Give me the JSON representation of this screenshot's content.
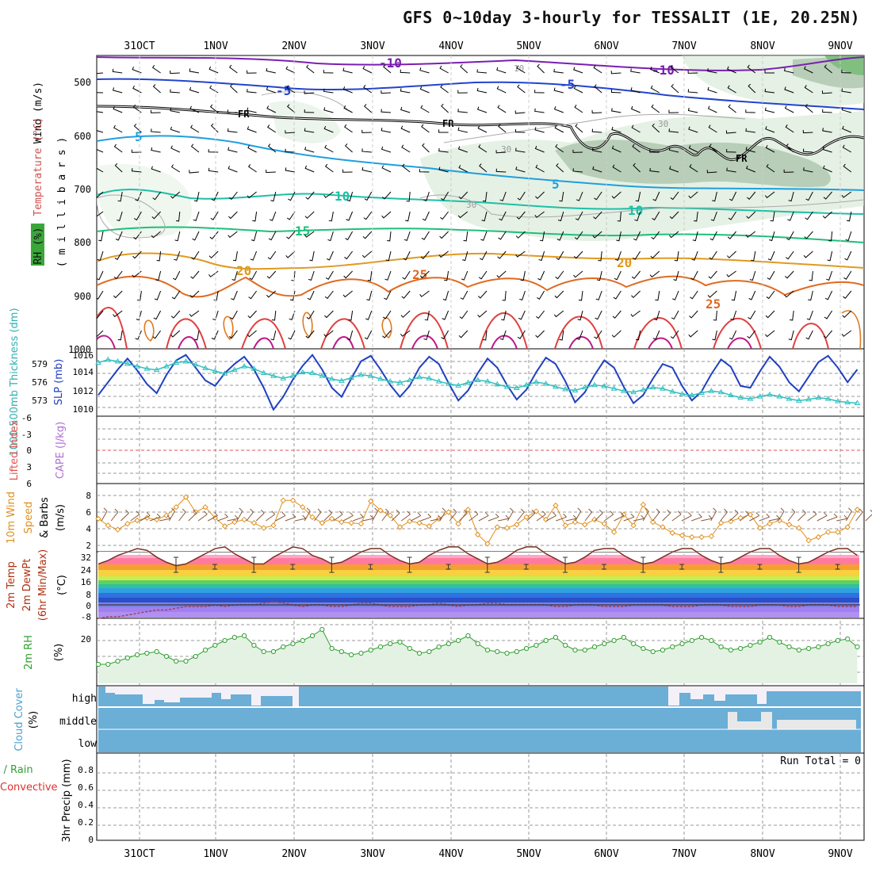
{
  "title": "GFS 0~10day 3-hourly for TESSALIT (1E, 20.25N)",
  "dates": [
    "31OCT",
    "1NOV",
    "2NOV",
    "3NOV",
    "4NOV",
    "5NOV",
    "6NOV",
    "7NOV",
    "8NOV",
    "9NOV"
  ],
  "panels": {
    "upper": {
      "ylabel_wind": "Wind (m/s)",
      "ylabel_temp": "Temperature (°C)",
      "ylabel_mb": "( m i l l i b a r s )",
      "rh_label": "RH (%)",
      "yticks": [
        "500",
        "600",
        "700",
        "800",
        "900",
        "1000"
      ],
      "labels": [
        {
          "text": "-10",
          "color": "#7a1fb0"
        },
        {
          "text": "-10",
          "color": "#7a1fb0"
        },
        {
          "text": "-5",
          "color": "#2244cc"
        },
        {
          "text": "-5",
          "color": "#2244cc"
        },
        {
          "text": "FR",
          "color": "#000000"
        },
        {
          "text": "FR",
          "color": "#000000"
        },
        {
          "text": "FR",
          "color": "#000000"
        },
        {
          "text": "5",
          "color": "#1f9fdf"
        },
        {
          "text": "5",
          "color": "#1f9fdf"
        },
        {
          "text": "10",
          "color": "#1fbfa6"
        },
        {
          "text": "10",
          "color": "#1fbfa6"
        },
        {
          "text": "15",
          "color": "#1fbf7a"
        },
        {
          "text": "20",
          "color": "#e09a20"
        },
        {
          "text": "20",
          "color": "#e09a20"
        },
        {
          "text": "25",
          "color": "#e06a20"
        },
        {
          "text": "25",
          "color": "#e06a20"
        },
        {
          "text": "30",
          "color": "#999999"
        },
        {
          "text": "30",
          "color": "#999999"
        },
        {
          "text": "30",
          "color": "#999999"
        },
        {
          "text": "10",
          "color": "#999999"
        }
      ]
    },
    "slp": {
      "ylabel_thk": "1000-500mb Thickness (dm)",
      "ylabel_slp": "SLP (mb)",
      "left_ticks": [
        "579",
        "576",
        "573"
      ],
      "right_ticks": [
        "1016",
        "1014",
        "1012",
        "1010"
      ]
    },
    "cape": {
      "ylabel_li": "Lifted Index",
      "ylabel_cape": "CAPE (J/kg)",
      "ticks": [
        "-6",
        "-3",
        "0",
        "3",
        "6"
      ]
    },
    "wind10": {
      "ylabel1": "10m Wind",
      "ylabel2": "Speed",
      "ylabel3": "& Barbs",
      "units": "(m/s)",
      "ticks": [
        "8",
        "6",
        "4",
        "2"
      ]
    },
    "temp2m": {
      "ylabel1": "2m Temp",
      "ylabel2": "2m DewPt",
      "ylabel3": "(6hr Min/Max)",
      "units": "(°C)",
      "ticks": [
        "32",
        "24",
        "16",
        "8",
        "0",
        "-8"
      ]
    },
    "rh2m": {
      "ylabel": "2m RH",
      "units": "(%)",
      "ticks": [
        "20"
      ]
    },
    "cloud": {
      "ylabel": "Cloud Cover",
      "units": "(%)",
      "levels": [
        "high",
        "middle",
        "low"
      ]
    },
    "precip": {
      "ylabel_total": "Total / Rain",
      "ylabel_conv": "Convective",
      "ylabel": "3hr Precip (mm)",
      "ticks": [
        "0.8",
        "0.6",
        "0.4",
        "0.2",
        "0"
      ],
      "run_total": "Run Total = 0"
    }
  },
  "chart_data": [
    {
      "type": "line",
      "name": "SLP (mb)",
      "step_hours": 3,
      "values": [
        1011.8,
        1013.2,
        1014.6,
        1015.8,
        1014.5,
        1013.0,
        1012.0,
        1014.0,
        1015.6,
        1016.2,
        1014.8,
        1013.4,
        1012.8,
        1014.2,
        1015.2,
        1016.0,
        1014.6,
        1012.6,
        1010.2,
        1011.6,
        1013.5,
        1015.0,
        1016.2,
        1014.6,
        1012.6,
        1011.6,
        1013.6,
        1015.5,
        1016.1,
        1014.6,
        1012.9,
        1011.6,
        1012.8,
        1014.8,
        1016.0,
        1015.2,
        1013.1,
        1011.2,
        1012.3,
        1014.2,
        1015.8,
        1014.8,
        1012.9,
        1011.3,
        1012.4,
        1014.3,
        1015.9,
        1015.2,
        1013.3,
        1011.0,
        1012.1,
        1014.0,
        1015.6,
        1014.8,
        1012.7,
        1010.9,
        1011.8,
        1013.6,
        1015.2,
        1014.8,
        1012.8,
        1011.2,
        1012.2,
        1014.1,
        1015.7,
        1014.9,
        1012.8,
        1012.6,
        1014.4,
        1016.0,
        1014.9,
        1013.2,
        1012.2,
        1013.8,
        1015.4,
        1016.1,
        1014.8,
        1013.2,
        1014.6,
        1016.2
      ],
      "color": "#2040c0"
    },
    {
      "type": "line",
      "name": "1000-500mb Thickness (dm)",
      "step_hours": 3,
      "values": [
        578.8,
        579.3,
        579.0,
        578.6,
        578.2,
        577.8,
        577.6,
        578.2,
        578.8,
        579.0,
        578.5,
        577.9,
        577.4,
        577.0,
        577.6,
        578.2,
        577.8,
        577.1,
        576.6,
        576.2,
        576.6,
        577.2,
        577.1,
        576.6,
        576.1,
        575.8,
        576.3,
        576.8,
        576.6,
        576.1,
        575.7,
        575.5,
        575.9,
        576.4,
        576.2,
        575.7,
        575.3,
        575.0,
        575.5,
        575.9,
        575.7,
        575.2,
        574.8,
        574.6,
        575.1,
        575.6,
        575.3,
        574.8,
        574.4,
        574.2,
        574.7,
        575.1,
        574.9,
        574.5,
        574.1,
        573.9,
        574.3,
        574.7,
        574.5,
        574.0,
        573.6,
        573.4,
        573.8,
        574.1,
        573.9,
        573.4,
        573.0,
        572.8,
        573.2,
        573.5,
        573.2,
        572.8,
        572.5,
        572.7,
        573.0,
        572.8,
        572.4,
        572.2,
        572.1,
        572.0
      ],
      "color": "#30c0c0"
    },
    {
      "type": "line",
      "name": "10m Wind Speed (m/s)",
      "step_hours": 3,
      "values": [
        5.2,
        4.4,
        3.9,
        4.6,
        5.0,
        5.3,
        5.1,
        5.6,
        6.6,
        7.8,
        6.0,
        6.6,
        5.3,
        4.3,
        4.8,
        5.1,
        4.7,
        4.1,
        4.4,
        7.4,
        7.4,
        6.6,
        5.4,
        4.7,
        5.2,
        4.8,
        4.7,
        4.6,
        7.3,
        6.2,
        5.6,
        4.2,
        4.9,
        4.7,
        4.3,
        5.2,
        6.0,
        4.6,
        6.3,
        3.3,
        2.2,
        4.2,
        4.1,
        4.5,
        5.4,
        6.1,
        5.1,
        6.8,
        4.4,
        4.8,
        4.5,
        5.1,
        4.6,
        3.6,
        5.7,
        4.4,
        6.9,
        4.8,
        4.2,
        3.5,
        3.2,
        3.0,
        3.0,
        3.1,
        4.7,
        4.9,
        5.3,
        5.7,
        4.1,
        4.6,
        5.0,
        4.5,
        4.1,
        2.6,
        3.0,
        3.6,
        3.6,
        4.2,
        6.3,
        9.2,
        6.4,
        6.7,
        5.1,
        4.4,
        4.0,
        4.9,
        4.6,
        4.8,
        4.3,
        4.4,
        4.6,
        5.2,
        5.6
      ],
      "color": "#e0901e"
    },
    {
      "type": "area",
      "name": "2m Temp (°C)",
      "step_hours": 3,
      "values": [
        24,
        26,
        29,
        31,
        33,
        32,
        28,
        25,
        23,
        24,
        27,
        30,
        33,
        34,
        30,
        27,
        24,
        24,
        28,
        31,
        34,
        33,
        29,
        27,
        24,
        25,
        28,
        31,
        33,
        33,
        29,
        26,
        24,
        25,
        29,
        32,
        34,
        34,
        30,
        27,
        24,
        25,
        28,
        32,
        34,
        34,
        30,
        27,
        24,
        25,
        28,
        32,
        33,
        33,
        29,
        26,
        24,
        25,
        28,
        31,
        33,
        33,
        29,
        26,
        24,
        25,
        28,
        31,
        33,
        33,
        29,
        26,
        24,
        25,
        28,
        31,
        33,
        33,
        29,
        25,
        22
      ],
      "color": "#b03010"
    },
    {
      "type": "line",
      "name": "2m DewPt (°C)",
      "step_hours": 3,
      "values": [
        -8,
        -7,
        -7,
        -6,
        -5,
        -4,
        -3,
        -3,
        -2,
        -1,
        -1,
        -1,
        0,
        -1,
        0,
        0,
        0,
        1,
        2,
        1,
        0,
        -1,
        0,
        0,
        -1,
        -1,
        0,
        1,
        1,
        0,
        -1,
        -1,
        -1,
        0,
        0,
        1,
        0,
        -1,
        0,
        0,
        1,
        1,
        0,
        0,
        0,
        0,
        0,
        -1,
        -1,
        0,
        0,
        0,
        -1,
        -1,
        -1,
        0,
        0,
        0,
        0,
        -1,
        -1,
        -1,
        0,
        0,
        0,
        -1,
        -1,
        -1,
        0,
        0,
        0,
        -1,
        -1,
        0,
        0,
        0,
        -1,
        -1,
        -1,
        -1,
        -1
      ],
      "color": "#606060"
    },
    {
      "type": "line",
      "name": "2m RH (%)",
      "step_hours": 3,
      "values": [
        5,
        5,
        7,
        9,
        11,
        12,
        13,
        10,
        7,
        7,
        10,
        14,
        17,
        20,
        22,
        23,
        17,
        13,
        13,
        16,
        18,
        20,
        23,
        27,
        15,
        13,
        11,
        12,
        14,
        16,
        18,
        19,
        15,
        12,
        13,
        16,
        18,
        20,
        23,
        18,
        14,
        13,
        12,
        13,
        15,
        17,
        20,
        22,
        17,
        14,
        14,
        16,
        18,
        20,
        22,
        18,
        15,
        13,
        14,
        16,
        18,
        20,
        22,
        20,
        16,
        14,
        15,
        17,
        19,
        22,
        19,
        16,
        14,
        15,
        16,
        18,
        20,
        21,
        16,
        13,
        14,
        16,
        18,
        20,
        21,
        17,
        15,
        16,
        17,
        18,
        22,
        24
      ],
      "color": "#30a030"
    },
    {
      "type": "area",
      "name": "Cloud Cover (%)",
      "series": [
        {
          "name": "low",
          "values": [
            100
          ]
        },
        {
          "name": "middle",
          "values": [
            100
          ]
        },
        {
          "name": "high",
          "values": [
            100
          ]
        }
      ],
      "color": "#6baed6"
    },
    {
      "type": "bar",
      "name": "3hr Precip (mm)",
      "values": [
        0
      ],
      "ylim": [
        0,
        0.9
      ]
    }
  ]
}
